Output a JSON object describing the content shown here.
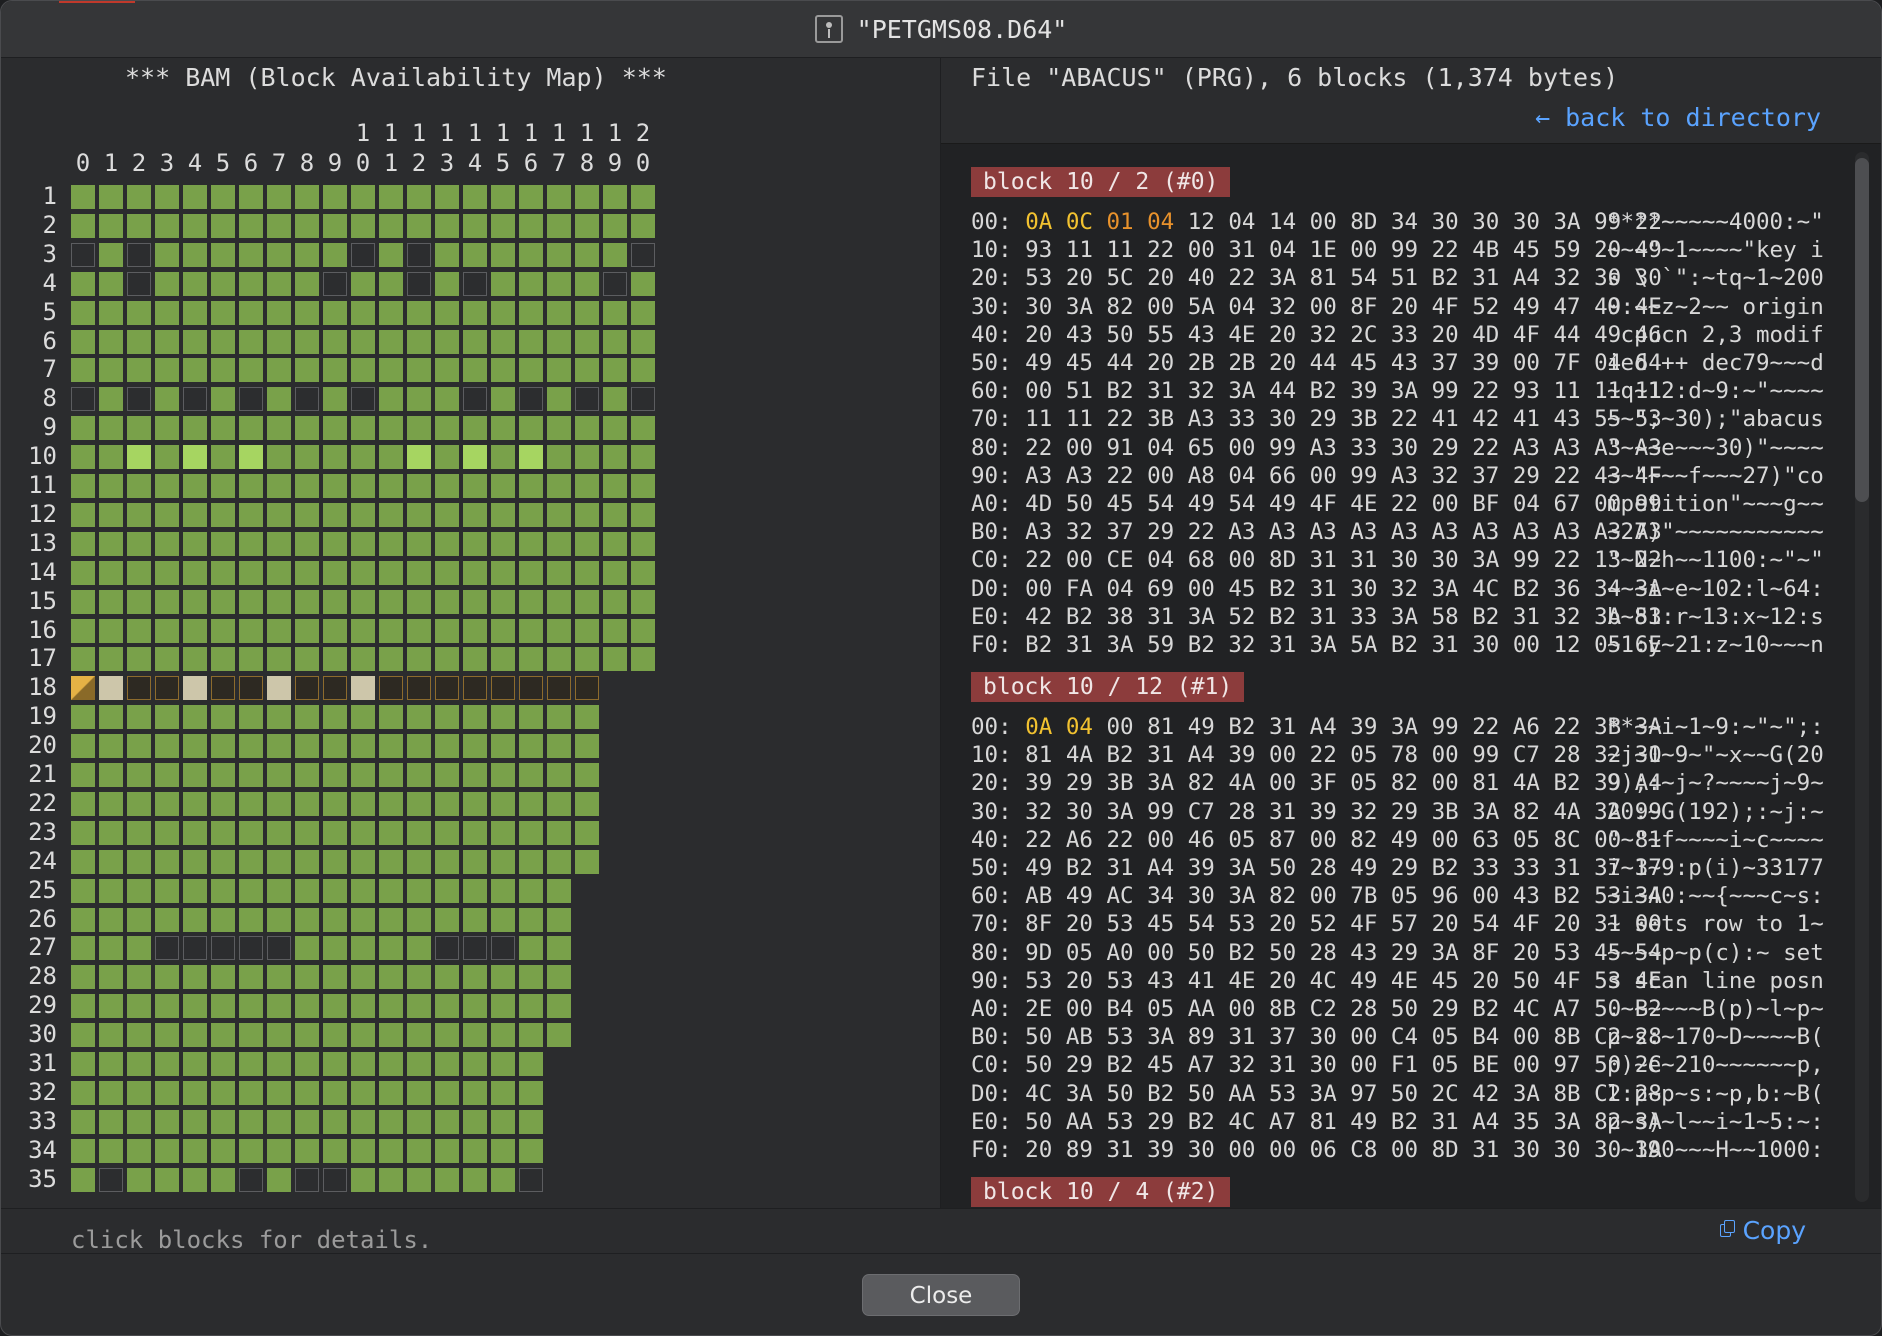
{
  "window": {
    "title": "\"PETGMS08.D64\""
  },
  "bam": {
    "title": "*** BAM (Block Availability Map) ***",
    "status": "click blocks for details.",
    "tracks": 35,
    "column_count": 21
  },
  "file": {
    "info": "File \"ABACUS\" (PRG), 6 blocks (1,374 bytes)",
    "back_label": "← back to directory",
    "copy_label": "Copy"
  },
  "blocks": [
    {
      "header": "block 10 / 2 (#0)",
      "lines": [
        {
          "off": "00:",
          "hex": "0A 0C 01 04 12 04 14 00 8D 34 30 30 30 3A 99 22",
          "asc": "****~~~~~4000:~\""
        },
        {
          "off": "10:",
          "hex": "93 11 11 22 00 31 04 1E 00 99 22 4B 45 59 20 49",
          "asc": "~~~\"~1~~~~\"key i"
        },
        {
          "off": "20:",
          "hex": "53 20 5C 20 40 22 3A 81 54 51 B2 31 A4 32 30 30",
          "asc": "s \\ `\":~tq~1~200"
        },
        {
          "off": "30:",
          "hex": "30 3A 82 00 5A 04 32 00 8F 20 4F 52 49 47 49 4E",
          "asc": "0:~~z~2~~ origin"
        },
        {
          "off": "40:",
          "hex": "20 43 50 55 43 4E 20 32 2C 33 20 4D 4F 44 49 46",
          "asc": " cpucn 2,3 modif"
        },
        {
          "off": "50:",
          "hex": "49 45 44 20 2B 2B 20 44 45 43 37 39 00 7F 04 64",
          "asc": "ied ++ dec79~~~d"
        },
        {
          "off": "60:",
          "hex": "00 51 B2 31 32 3A 44 B2 39 3A 99 22 93 11 11 11",
          "asc": "~q~12:d~9:~\"~~~~"
        },
        {
          "off": "70:",
          "hex": "11 11 22 3B A3 33 30 29 3B 22 41 42 41 43 55 53",
          "asc": "~~\";~30);\"abacus"
        },
        {
          "off": "80:",
          "hex": "22 00 91 04 65 00 99 A3 33 30 29 22 A3 A3 A3 A3",
          "asc": "\"~~~e~~~30)\"~~~~"
        },
        {
          "off": "90:",
          "hex": "A3 A3 22 00 A8 04 66 00 99 A3 32 37 29 22 43 4F",
          "asc": "~~\"~~~f~~~27)\"co"
        },
        {
          "off": "A0:",
          "hex": "4D 50 45 54 49 54 49 4F 4E 22 00 BF 04 67 00 99",
          "asc": "mpetition\"~~~g~~"
        },
        {
          "off": "B0:",
          "hex": "A3 32 37 29 22 A3 A3 A3 A3 A3 A3 A3 A3 A3 A3 A3",
          "asc": "~27)\"~~~~~~~~~~~"
        },
        {
          "off": "C0:",
          "hex": "22 00 CE 04 68 00 8D 31 31 30 30 3A 99 22 13 22",
          "asc": "\"~N~h~~1100:~\"~\""
        },
        {
          "off": "D0:",
          "hex": "00 FA 04 69 00 45 B2 31 30 32 3A 4C B2 36 34 3A",
          "asc": "~~~i~e~102:l~64:"
        },
        {
          "off": "E0:",
          "hex": "42 B2 38 31 3A 52 B2 31 33 3A 58 B2 31 32 3A 53",
          "asc": "b~81:r~13:x~12:s"
        },
        {
          "off": "F0:",
          "hex": "B2 31 3A 59 B2 32 31 3A 5A B2 31 30 00 12 05 6E",
          "asc": "~1:y~21:z~10~~~n"
        }
      ]
    },
    {
      "header": "block 10 / 12 (#1)",
      "lines": [
        {
          "off": "00:",
          "hex": "0A 04 00 81 49 B2 31 A4 39 3A 99 22 A6 22 3B 3A",
          "asc": "**~~i~1~9:~\"~\";:"
        },
        {
          "off": "10:",
          "hex": "81 4A B2 31 A4 39 00 22 05 78 00 99 C7 28 32 30",
          "asc": "~j~1~9~\"~x~~G(20"
        },
        {
          "off": "20:",
          "hex": "39 29 3B 3A 82 4A 00 3F 05 82 00 81 4A B2 39 A4",
          "asc": "9);:~j~?~~~~j~9~"
        },
        {
          "off": "30:",
          "hex": "32 30 3A 99 C7 28 31 39 32 29 3B 3A 82 4A 3A 99",
          "asc": "20:~G(192);:~j:~"
        },
        {
          "off": "40:",
          "hex": "22 A6 22 00 46 05 87 00 82 49 00 63 05 8C 00 81",
          "asc": "\"~\"~f~~~~i~c~~~~"
        },
        {
          "off": "50:",
          "hex": "49 B2 31 A4 39 3A 50 28 49 29 B2 33 33 31 37 37",
          "asc": "i~1~9:p(i)~33177"
        },
        {
          "off": "60:",
          "hex": "AB 49 AC 34 30 3A 82 00 7B 05 96 00 43 B2 53 3A",
          "asc": "~i~40:~~{~~~c~s:"
        },
        {
          "off": "70:",
          "hex": "8F 20 53 45 54 53 20 52 4F 57 20 54 4F 20 31 00",
          "asc": "~ sets row to 1~"
        },
        {
          "off": "80:",
          "hex": "9D 05 A0 00 50 B2 50 28 43 29 3A 8F 20 53 45 54",
          "asc": "~~~~p~p(c):~ set"
        },
        {
          "off": "90:",
          "hex": "53 20 53 43 41 4E 20 4C 49 4E 45 20 50 4F 53 4E",
          "asc": "s scan line posn"
        },
        {
          "off": "A0:",
          "hex": "2E 00 B4 05 AA 00 8B C2 28 50 29 B2 4C A7 50 B2",
          "asc": ".~~~~~~B(p)~l~p~"
        },
        {
          "off": "B0:",
          "hex": "50 AB 53 3A 89 31 37 30 00 C4 05 B4 00 8B C2 28",
          "asc": "p~s:~170~D~~~~B("
        },
        {
          "off": "C0:",
          "hex": "50 29 B2 45 A7 32 31 30 00 F1 05 BE 00 97 50 2C",
          "asc": "p)~e~210~~~~~~p,"
        },
        {
          "off": "D0:",
          "hex": "4C 3A 50 B2 50 AA 53 3A 97 50 2C 42 3A 8B C2 28",
          "asc": "l:p~p~s:~p,b:~B("
        },
        {
          "off": "E0:",
          "hex": "50 AA 53 29 B2 4C A7 81 49 B2 31 A4 35 3A 82 3A",
          "asc": "p~s)~l~~i~1~5:~:"
        },
        {
          "off": "F0:",
          "hex": "20 89 31 39 30 00 00 06 C8 00 8D 31 30 30 30 3A",
          "asc": " ~190~~~H~~1000:"
        }
      ]
    },
    {
      "header": "block 10 / 4 (#2)",
      "lines": []
    }
  ],
  "buttons": {
    "close_label": "Close"
  }
}
